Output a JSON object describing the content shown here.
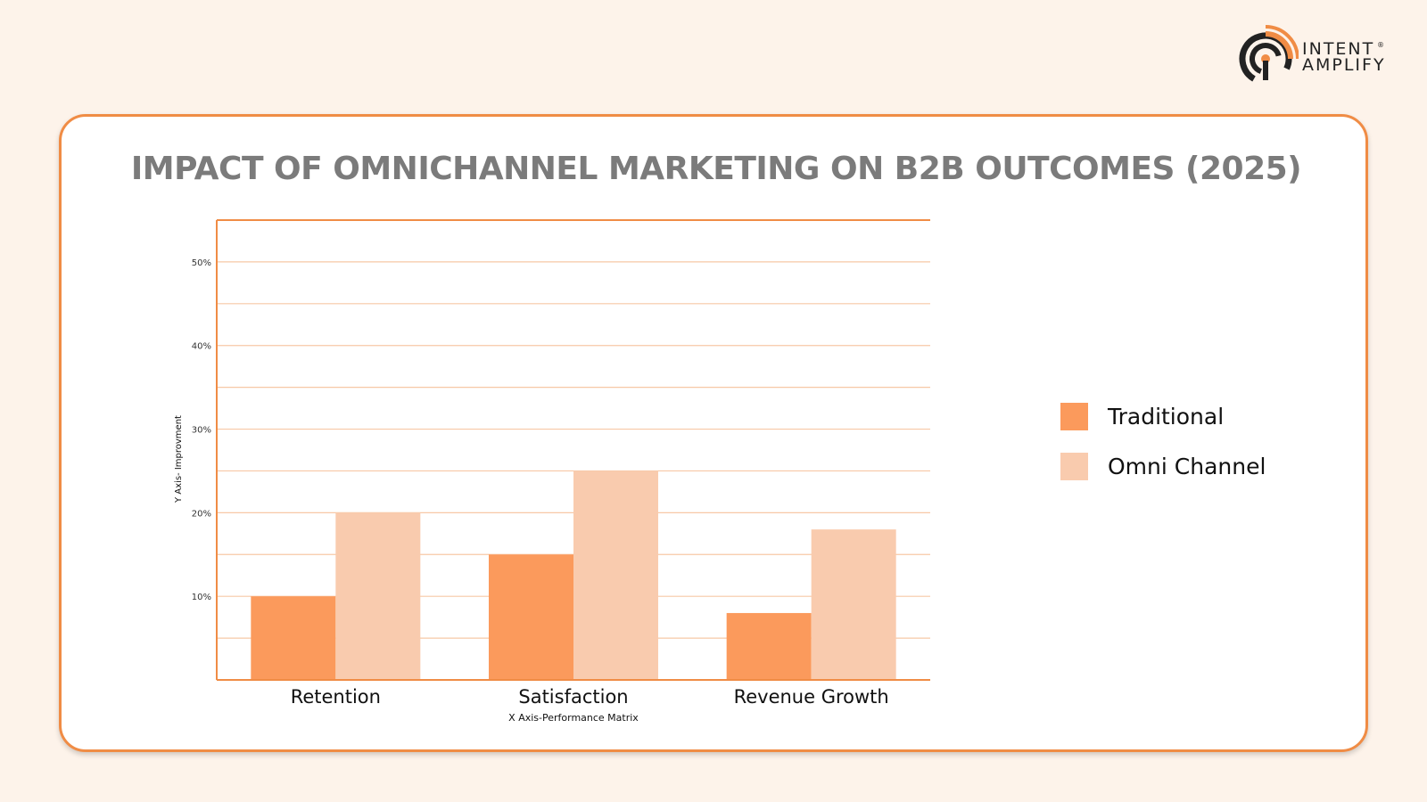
{
  "brand": {
    "line1": "Intent",
    "line2": "Amplify",
    "registered": "®",
    "colors": {
      "orange": "#f08c45",
      "dark": "#222222"
    }
  },
  "colors": {
    "traditional": "#fb9a5c",
    "omni": "#f9cbae",
    "axis": "#f08c45",
    "grid": "#f7c8a6",
    "title": "#7b7b7b"
  },
  "chart_data": {
    "type": "bar",
    "title": "IMPACT OF OMNICHANNEL MARKETING ON B2B OUTCOMES (2025)",
    "xlabel": "X Axis-Performance Matrix",
    "ylabel": "Y Axis- Improvment",
    "categories": [
      "Retention",
      "Satisfaction",
      "Revenue Growth"
    ],
    "series": [
      {
        "name": "Traditional",
        "values": [
          10,
          15,
          8
        ]
      },
      {
        "name": "Omni Channel",
        "values": [
          20,
          25,
          18
        ]
      }
    ],
    "ylim": [
      0,
      55
    ],
    "yticks": [
      10,
      20,
      30,
      40,
      50
    ],
    "ytick_labels": [
      "10%",
      "20%",
      "30%",
      "40%",
      "50%"
    ],
    "grid_step": 5,
    "grid": true,
    "legend_position": "right"
  }
}
